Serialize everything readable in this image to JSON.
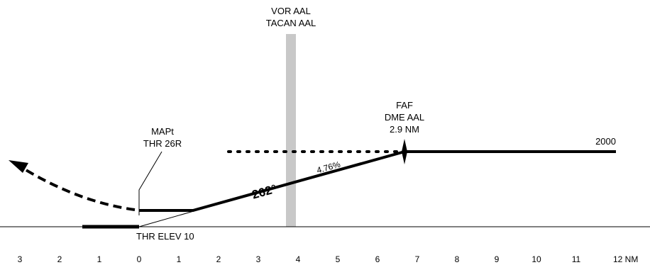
{
  "navaid": {
    "line1": "VOR AAL",
    "line2": "TACAN  AAL"
  },
  "mapt": {
    "line1": "MAPt",
    "line2": "THR 26R"
  },
  "faf": {
    "line1": "FAF",
    "line2": "DME AAL",
    "line3": "2.9 NM"
  },
  "altitude_label": "2000",
  "course_label": "262°",
  "gradient_label": "4.76%",
  "threshold_label": "THR ELEV 10",
  "scale": {
    "ticks": [
      "3",
      "2",
      "1",
      "0",
      "1",
      "2",
      "3",
      "4",
      "5",
      "6",
      "7",
      "8",
      "9",
      "10",
      "11",
      "12 NM"
    ],
    "unit": "NM"
  },
  "colors": {
    "lines": "#000000",
    "navaid_band": "#c8c8c8"
  }
}
